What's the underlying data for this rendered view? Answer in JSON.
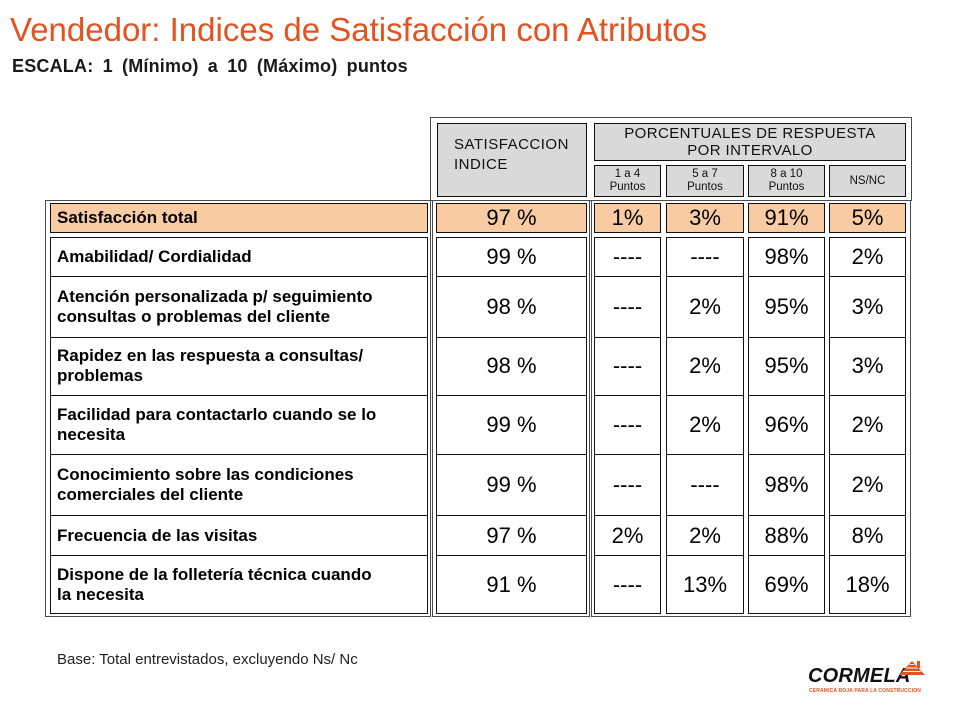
{
  "slide": {
    "title": "Vendedor: Indices de Satisfacción con Atributos",
    "subtitle": "ESCALA: 1 (Mínimo) a 10 (Máximo) puntos",
    "footer_note": "Base: Total entrevistados, excluyendo Ns/ Nc"
  },
  "table": {
    "index_header": [
      "SATISFACCION",
      "INDICE"
    ],
    "interval_group_header": [
      "PORCENTUALES DE RESPUESTA",
      "POR INTERVALO"
    ],
    "interval_headers": [
      [
        "1 a 4",
        "Puntos"
      ],
      [
        "5 a 7",
        "Puntos"
      ],
      [
        "8 a 10",
        "Puntos"
      ],
      [
        "NS/NC"
      ]
    ],
    "total_row": {
      "label": [
        "Satisfacción total"
      ],
      "index": "97 %",
      "intervals": [
        "1%",
        "3%",
        "91%",
        "5%"
      ]
    },
    "rows": [
      {
        "label": [
          "Amabilidad/ Cordialidad"
        ],
        "index": "99 %",
        "intervals": [
          "----",
          "----",
          "98%",
          "2%"
        ]
      },
      {
        "label": [
          "Atención personalizada p/ seguimiento",
          "consultas o problemas del cliente"
        ],
        "index": "98 %",
        "intervals": [
          "----",
          "2%",
          "95%",
          "3%"
        ]
      },
      {
        "label": [
          "Rapidez en las respuesta a consultas/",
          "problemas"
        ],
        "index": "98 %",
        "intervals": [
          "----",
          "2%",
          "95%",
          "3%"
        ]
      },
      {
        "label": [
          "Facilidad para contactarlo cuando se lo",
          "necesita"
        ],
        "index": "99 %",
        "intervals": [
          "----",
          "2%",
          "96%",
          "2%"
        ]
      },
      {
        "label": [
          "Conocimiento sobre las condiciones",
          "comerciales del cliente"
        ],
        "index": "99 %",
        "intervals": [
          "----",
          "----",
          "98%",
          "2%"
        ]
      },
      {
        "label": [
          "Frecuencia de las visitas"
        ],
        "index": "97 %",
        "intervals": [
          "2%",
          "2%",
          "88%",
          "8%"
        ]
      },
      {
        "label": [
          "Dispone de la folletería técnica cuando",
          "la necesita"
        ],
        "index": "91 %",
        "intervals": [
          "----",
          "13%",
          "69%",
          "18%"
        ]
      }
    ]
  },
  "logo": {
    "wordmark": "CORMELA",
    "tagline": "CERAMICA ROJA PARA LA CONSTRUCCION",
    "icon": "roof-icon"
  },
  "colors": {
    "title": "#E4521F",
    "header_fill": "#D9D9D9",
    "total_row_fill": "#F9CBA2",
    "logo_accent": "#E4521F"
  }
}
